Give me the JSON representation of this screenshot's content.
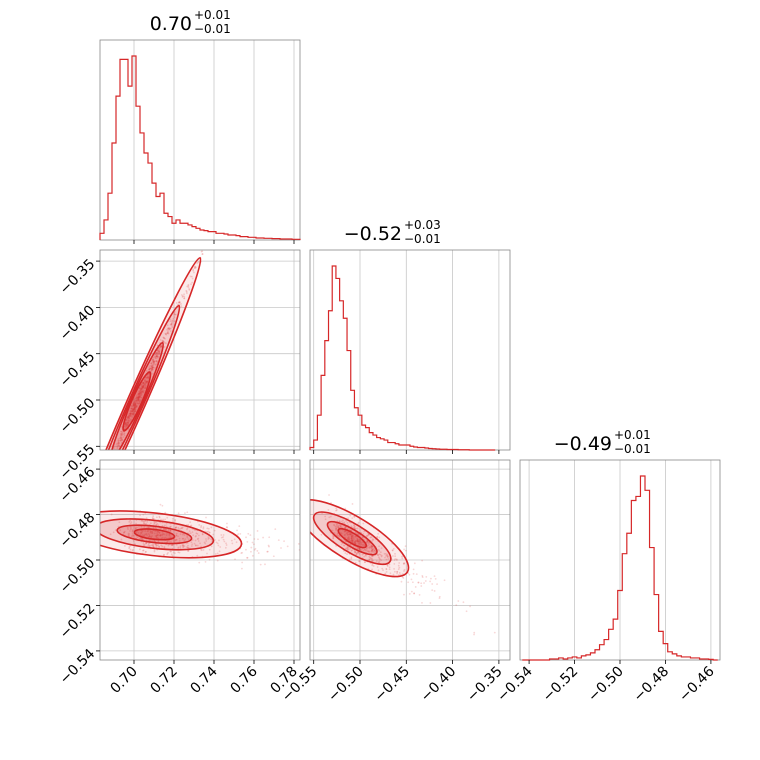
{
  "chart_data": {
    "type": "corner",
    "color": "#d62728",
    "grid": true,
    "titles": [
      {
        "value": "0.70",
        "plus": "+0.01",
        "minus": "−0.01"
      },
      {
        "value": "−0.52",
        "plus": "+0.03",
        "minus": "−0.01"
      },
      {
        "value": "−0.49",
        "plus": "+0.01",
        "minus": "−0.01"
      }
    ],
    "params": [
      {
        "range": [
          0.683,
          0.783
        ],
        "ticks": [
          0.7,
          0.72,
          0.74,
          0.76,
          0.78
        ],
        "tick_labels": [
          "0.70",
          "0.72",
          "0.74",
          "0.76",
          "0.78"
        ]
      },
      {
        "range": [
          -0.554,
          -0.338
        ],
        "ticks": [
          -0.55,
          -0.5,
          -0.45,
          -0.4,
          -0.35
        ],
        "tick_labels": [
          "−0.55",
          "−0.50",
          "−0.45",
          "−0.40",
          "−0.35"
        ]
      },
      {
        "range": [
          -0.544,
          -0.456
        ],
        "ticks": [
          -0.54,
          -0.52,
          -0.5,
          -0.48,
          -0.46
        ],
        "tick_labels": [
          "−0.54",
          "−0.52",
          "−0.50",
          "−0.48",
          "−0.46"
        ]
      }
    ],
    "histograms": [
      {
        "param": 0,
        "x": [
          0.684,
          0.686,
          0.688,
          0.69,
          0.692,
          0.694,
          0.696,
          0.698,
          0.7,
          0.702,
          0.704,
          0.706,
          0.708,
          0.71,
          0.712,
          0.714,
          0.716,
          0.718,
          0.72,
          0.722,
          0.724,
          0.726,
          0.728,
          0.73,
          0.732,
          0.734,
          0.736,
          0.738,
          0.74,
          0.742,
          0.744,
          0.746,
          0.748,
          0.75,
          0.752,
          0.754,
          0.756,
          0.758,
          0.76,
          0.762,
          0.764,
          0.766,
          0.768,
          0.77,
          0.772,
          0.774,
          0.776,
          0.778,
          0.78,
          0.782
        ],
        "counts": [
          2,
          6,
          14,
          29,
          43,
          54,
          54,
          46,
          55,
          40,
          32,
          26,
          23,
          17,
          13,
          14,
          8,
          7,
          5,
          6,
          5,
          5,
          4.5,
          4,
          3.5,
          3,
          2.8,
          2.5,
          2.5,
          2,
          2,
          1.8,
          1.5,
          1.5,
          1.3,
          1,
          1,
          0.8,
          0.8,
          0.6,
          0.6,
          0.5,
          0.5,
          0.4,
          0.4,
          0.3,
          0.3,
          0.3,
          0.2,
          0.2
        ]
      },
      {
        "param": 1,
        "x": [
          -0.552,
          -0.548,
          -0.544,
          -0.54,
          -0.536,
          -0.532,
          -0.528,
          -0.524,
          -0.52,
          -0.516,
          -0.512,
          -0.508,
          -0.504,
          -0.5,
          -0.496,
          -0.492,
          -0.488,
          -0.484,
          -0.48,
          -0.476,
          -0.472,
          -0.468,
          -0.464,
          -0.46,
          -0.456,
          -0.452,
          -0.448,
          -0.444,
          -0.44,
          -0.436,
          -0.432,
          -0.428,
          -0.424,
          -0.42,
          -0.416,
          -0.412,
          -0.408,
          -0.404,
          -0.4,
          -0.396,
          -0.392,
          -0.388,
          -0.384,
          -0.38,
          -0.376,
          -0.372,
          -0.368,
          -0.364,
          -0.36,
          -0.356
        ],
        "counts": [
          1,
          4,
          14,
          30,
          44,
          56,
          74,
          69,
          60,
          53,
          40,
          24,
          17,
          14,
          10,
          9,
          7,
          6,
          5,
          4.5,
          4,
          3,
          3,
          2.5,
          2,
          2,
          2,
          1.5,
          1.2,
          1,
          1,
          0.8,
          0.6,
          0.5,
          0.4,
          0.3,
          0.3,
          0.2,
          0.2,
          0.2,
          0.1,
          0.1,
          0.1,
          0,
          0,
          0,
          0,
          0,
          0,
          0
        ]
      },
      {
        "param": 2,
        "x": [
          -0.542,
          -0.54,
          -0.538,
          -0.536,
          -0.534,
          -0.532,
          -0.53,
          -0.528,
          -0.526,
          -0.524,
          -0.522,
          -0.52,
          -0.518,
          -0.516,
          -0.514,
          -0.512,
          -0.51,
          -0.508,
          -0.506,
          -0.504,
          -0.502,
          -0.5,
          -0.498,
          -0.496,
          -0.494,
          -0.492,
          -0.49,
          -0.488,
          -0.486,
          -0.484,
          -0.482,
          -0.48,
          -0.478,
          -0.476,
          -0.474,
          -0.472,
          -0.47,
          -0.468,
          -0.466,
          -0.464,
          -0.462,
          -0.46,
          -0.458
        ],
        "counts": [
          0,
          0,
          0,
          0,
          0,
          0,
          0.5,
          0.5,
          1,
          0.5,
          1,
          1.5,
          1,
          2,
          2.5,
          3.5,
          5,
          7.5,
          10,
          15,
          20,
          34,
          52,
          62,
          78,
          80,
          90,
          83,
          55,
          32,
          14,
          8,
          4,
          3,
          2,
          1.5,
          1.5,
          1,
          1,
          0.5,
          0.5,
          0.3,
          0
        ]
      }
    ],
    "pairs": [
      {
        "x_param": 0,
        "y_param": 1,
        "slope": 4.9,
        "center": [
          0.696,
          -0.528
        ],
        "spread": [
          0.009,
          0.004
        ]
      },
      {
        "x_param": 0,
        "y_param": 2,
        "slope": -0.1,
        "center": [
          0.703,
          -0.488
        ],
        "spread": [
          0.012,
          0.004
        ]
      },
      {
        "x_param": 1,
        "y_param": 2,
        "slope": -0.25,
        "center": [
          -0.518,
          -0.488
        ],
        "spread": [
          0.016,
          0.004
        ]
      }
    ]
  }
}
